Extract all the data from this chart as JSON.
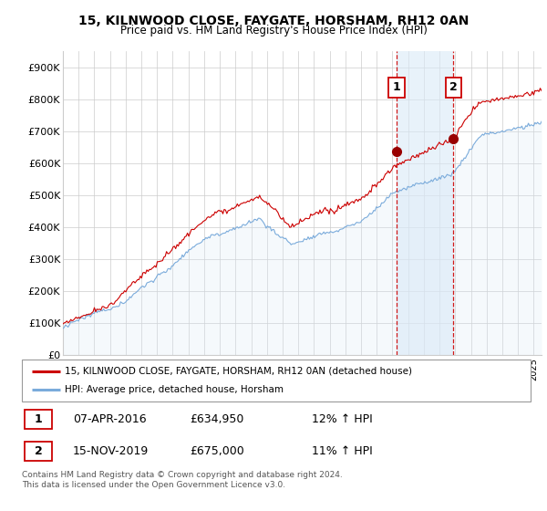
{
  "title1": "15, KILNWOOD CLOSE, FAYGATE, HORSHAM, RH12 0AN",
  "title2": "Price paid vs. HM Land Registry's House Price Index (HPI)",
  "ylabel_ticks": [
    "£0",
    "£100K",
    "£200K",
    "£300K",
    "£400K",
    "£500K",
    "£600K",
    "£700K",
    "£800K",
    "£900K"
  ],
  "ytick_values": [
    0,
    100000,
    200000,
    300000,
    400000,
    500000,
    600000,
    700000,
    800000,
    900000
  ],
  "ylim": [
    0,
    950000
  ],
  "xlim_start": 1995.0,
  "xlim_end": 2025.5,
  "marker1_x": 2016.27,
  "marker1_y": 634950,
  "marker1_label": "1",
  "marker2_x": 2019.88,
  "marker2_y": 675000,
  "marker2_label": "2",
  "sale1_date": "07-APR-2016",
  "sale1_price": "£634,950",
  "sale1_hpi": "12% ↑ HPI",
  "sale2_date": "15-NOV-2019",
  "sale2_price": "£675,000",
  "sale2_hpi": "11% ↑ HPI",
  "legend_line1": "15, KILNWOOD CLOSE, FAYGATE, HORSHAM, RH12 0AN (detached house)",
  "legend_line2": "HPI: Average price, detached house, Horsham",
  "footer": "Contains HM Land Registry data © Crown copyright and database right 2024.\nThis data is licensed under the Open Government Licence v3.0.",
  "line1_color": "#cc0000",
  "line2_color": "#7aabdb",
  "line2_fill_color": "#daeaf7",
  "shade_color": "#daeaf7",
  "marker_color": "#990000",
  "grid_color": "#cccccc",
  "background_color": "#ffffff"
}
